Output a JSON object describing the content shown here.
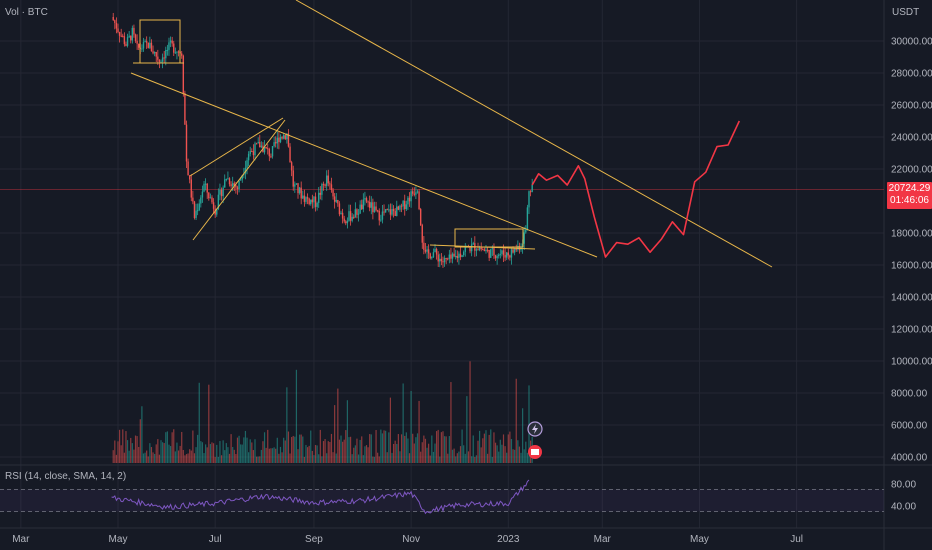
{
  "header": {
    "series_label": "Vol · BTC",
    "currency": "USDT"
  },
  "rsi_label": "RSI (14, close, SMA, 14, 2)",
  "last_price": {
    "value": "20724.29",
    "countdown": "01:46:06",
    "color": "#f23645"
  },
  "colors": {
    "up": "#26a69a",
    "down": "#ef5350",
    "trendline": "#e8b64a",
    "projection": "#f23645",
    "rsi": "#7e57c2",
    "background": "#161a25",
    "grid": "#242733"
  },
  "chart_data": [
    {
      "type": "line",
      "title": "",
      "x_ticks": [
        "Mar",
        "May",
        "Jul",
        "Sep",
        "Nov",
        "2023",
        "Mar",
        "May",
        "Jul"
      ],
      "y_ticks": [
        "30000.00",
        "28000.00",
        "26000.00",
        "24000.00",
        "22000.00",
        "18000.00",
        "16000.00",
        "14000.00",
        "12000.00",
        "10000.00",
        "8000.00",
        "6000.00",
        "4000.00"
      ],
      "ylim": [
        4000,
        31500
      ],
      "series": [
        {
          "x": [
            "2022-04-27",
            "2022-05-06",
            "2022-05-10",
            "2022-05-13",
            "2022-05-20",
            "2022-05-27",
            "2022-06-03",
            "2022-06-10",
            "2022-06-13",
            "2022-06-18",
            "2022-06-24",
            "2022-07-01",
            "2022-07-08",
            "2022-07-15",
            "2022-07-22",
            "2022-07-29",
            "2022-08-05",
            "2022-08-10",
            "2022-08-15",
            "2022-08-19",
            "2022-08-26",
            "2022-09-02",
            "2022-09-09",
            "2022-09-13",
            "2022-09-20",
            "2022-09-27",
            "2022-10-04",
            "2022-10-11",
            "2022-10-18",
            "2022-10-25",
            "2022-11-01",
            "2022-11-05",
            "2022-11-08",
            "2022-11-10",
            "2022-11-15",
            "2022-11-21",
            "2022-11-28",
            "2022-12-05",
            "2022-12-12",
            "2022-12-19",
            "2022-12-26",
            "2023-01-02",
            "2023-01-09",
            "2023-01-12",
            "2023-01-14",
            "2023-01-16"
          ],
          "values": [
            31500,
            29800,
            30500,
            29500,
            29800,
            28800,
            29700,
            29300,
            22500,
            19000,
            21000,
            19500,
            21500,
            20800,
            23000,
            23500,
            22900,
            24000,
            24200,
            21000,
            20200,
            19900,
            21400,
            20200,
            18900,
            19200,
            20000,
            19100,
            19300,
            19400,
            20400,
            20900,
            17700,
            16600,
            16800,
            16200,
            16400,
            17000,
            17200,
            16800,
            16700,
            16700,
            17300,
            18200,
            20800,
            21000
          ]
        },
        {
          "name": "",
          "x": [
            "2023-01-16",
            "2023-01-20",
            "2023-01-25",
            "2023-02-01",
            "2023-02-07",
            "2023-02-14",
            "2023-02-18",
            "2023-02-24",
            "2023-03-03",
            "2023-03-10",
            "2023-03-17",
            "2023-03-24",
            "2023-03-31",
            "2023-04-07",
            "2023-04-14",
            "2023-04-21",
            "2023-04-28",
            "2023-05-05",
            "2023-05-12",
            "2023-05-19",
            "2023-05-26"
          ],
          "values": [
            21000,
            21700,
            21300,
            21600,
            21000,
            22200,
            21400,
            19000,
            16500,
            17400,
            17300,
            17700,
            16800,
            17600,
            18700,
            17900,
            21200,
            21800,
            23400,
            23500,
            25000
          ]
        },
        {
          "name": "RSI",
          "x": [
            "2022-04-27",
            "2022-06-01",
            "2022-07-01",
            "2022-08-01",
            "2022-09-01",
            "2022-10-01",
            "2022-11-01",
            "2022-11-10",
            "2022-12-01",
            "2023-01-01",
            "2023-01-14"
          ],
          "values": [
            55,
            38,
            45,
            58,
            46,
            50,
            63,
            30,
            42,
            45,
            85
          ]
        }
      ]
    }
  ]
}
